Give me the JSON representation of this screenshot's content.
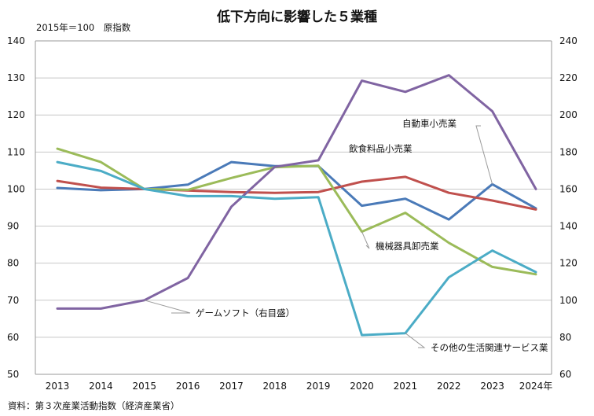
{
  "chart_data": {
    "type": "line",
    "title": "低下方向に影響した５業種",
    "subtitle": "2015年＝100　原指数",
    "source": "資料：第３次産業活動指数（経済産業省）",
    "categories": [
      "2013",
      "2014",
      "2015",
      "2016",
      "2017",
      "2018",
      "2019",
      "2020",
      "2021",
      "2022",
      "2023",
      "2024年"
    ],
    "ylim": [
      50,
      140
    ],
    "y_ticks": [
      "50",
      "60",
      "70",
      "80",
      "90",
      "100",
      "110",
      "120",
      "130",
      "140"
    ],
    "y2lim": [
      60,
      240
    ],
    "y2_ticks": [
      "60",
      "80",
      "100",
      "120",
      "140",
      "160",
      "180",
      "200",
      "220",
      "240"
    ],
    "grid": true,
    "series": [
      {
        "name": "自動車小売業",
        "axis": "left",
        "color": "#4a7ab8",
        "values": [
          100.3,
          99.7,
          100.0,
          101.2,
          107.3,
          106.2,
          106.2,
          95.5,
          97.4,
          91.8,
          101.3,
          94.8
        ]
      },
      {
        "name": "飲食料品小売業",
        "axis": "left",
        "color": "#c0504d",
        "values": [
          102.2,
          100.4,
          100.0,
          99.6,
          99.2,
          99.0,
          99.2,
          102.0,
          103.3,
          99.0,
          96.9,
          94.5
        ]
      },
      {
        "name": "機械器具卸売業",
        "axis": "left",
        "color": "#9bbb59",
        "values": [
          110.9,
          107.3,
          100.0,
          99.8,
          103.0,
          105.9,
          106.3,
          88.5,
          93.6,
          85.5,
          79.0,
          77.0
        ]
      },
      {
        "name": "ゲームソフト（右目盛）",
        "axis": "right",
        "color": "#8064a2",
        "values": [
          95.5,
          95.5,
          100.0,
          112.0,
          150.5,
          172.0,
          175.5,
          218.5,
          212.5,
          221.5,
          202.0,
          160.0
        ]
      },
      {
        "name": "その他の生活関連サービス業",
        "axis": "left",
        "color": "#4bacc6",
        "values": [
          107.3,
          104.9,
          100.0,
          98.1,
          98.1,
          97.4,
          97.8,
          60.6,
          61.1,
          76.2,
          83.4,
          77.6
        ]
      }
    ]
  }
}
